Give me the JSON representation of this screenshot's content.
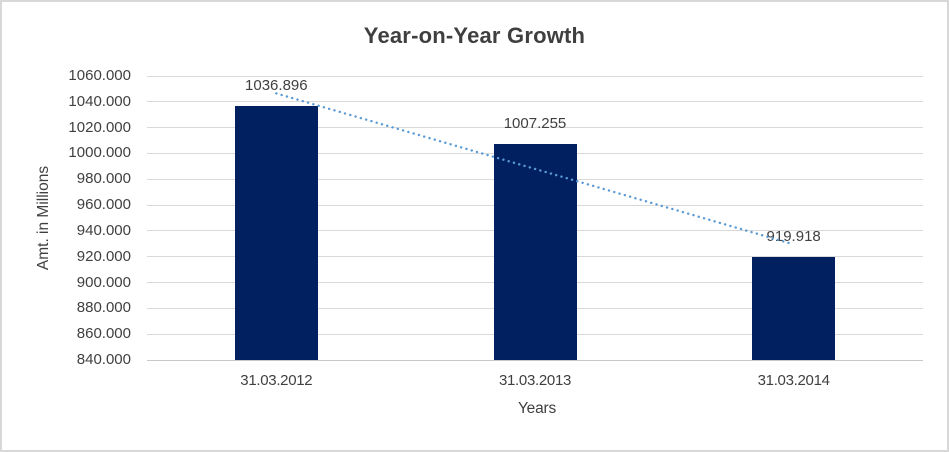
{
  "chart_data": {
    "type": "bar",
    "title": "Year-on-Year Growth",
    "xlabel": "Years",
    "ylabel": "Amt. in Millions",
    "categories": [
      "31.03.2012",
      "31.03.2013",
      "31.03.2014"
    ],
    "values": [
      1036.896,
      1007.255,
      919.918
    ],
    "value_labels": [
      "1036.896",
      "1007.255",
      "919.918"
    ],
    "ylim": [
      840,
      1060
    ],
    "ytick_step": 20,
    "ytick_labels": [
      "1060.000",
      "1040.000",
      "1020.000",
      "1000.000",
      "980.000",
      "960.000",
      "940.000",
      "920.000",
      "900.000",
      "880.000",
      "860.000",
      "840.000"
    ],
    "grid": true,
    "legend": "none",
    "bar_color": "#002060",
    "gridline_color": "#d9d9d9",
    "axis_line_color": "#c9c9c9",
    "text_color": "#404040",
    "trendline": {
      "type": "linear",
      "style": "dotted",
      "color": "#5b9bd5"
    }
  }
}
